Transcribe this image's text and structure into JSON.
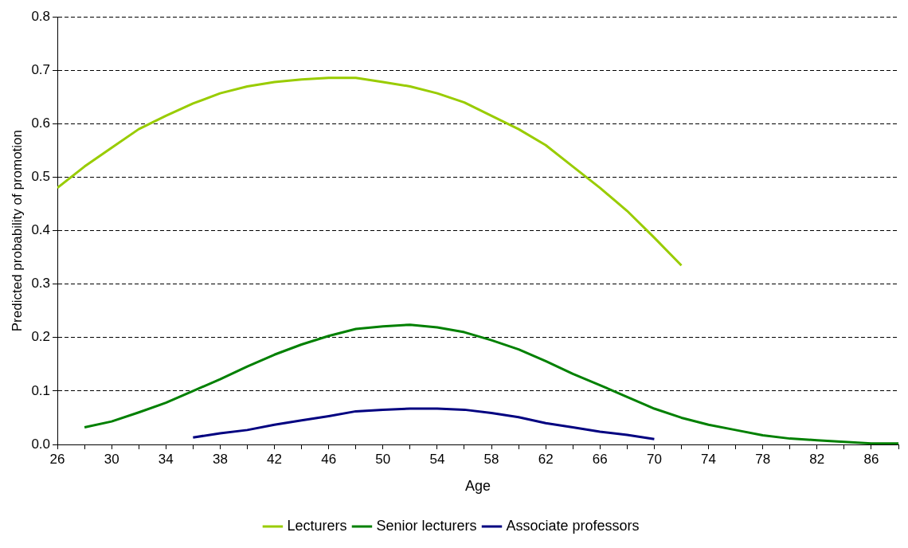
{
  "chart_data": {
    "type": "line",
    "xlabel": "Age",
    "ylabel": "Predicted probability of promotion",
    "xlim": [
      26,
      88
    ],
    "xticks": [
      26,
      {
        "value": 28,
        "label": null
      },
      30,
      {
        "value": 32,
        "label": null
      },
      34,
      {
        "value": 36,
        "label": null
      },
      38,
      {
        "value": 40,
        "label": null
      },
      42,
      {
        "value": 44,
        "label": null
      },
      46,
      {
        "value": 48,
        "label": null
      },
      50,
      {
        "value": 52,
        "label": null
      },
      54,
      {
        "value": 56,
        "label": null
      },
      58,
      {
        "value": 60,
        "label": null
      },
      62,
      {
        "value": 64,
        "label": null
      },
      66,
      {
        "value": 68,
        "label": null
      },
      70,
      {
        "value": 72,
        "label": null
      },
      74,
      {
        "value": 76,
        "label": null
      },
      78,
      {
        "value": 80,
        "label": null
      },
      82,
      {
        "value": 84,
        "label": null
      },
      86,
      {
        "value": 88,
        "label": null
      }
    ],
    "ylim": [
      0,
      0.8
    ],
    "yticks": [
      {
        "value": 0,
        "label": "0.0"
      },
      0.1,
      0.2,
      0.3,
      0.4,
      0.5,
      0.6,
      0.7,
      0.8
    ],
    "grid": "y",
    "legend": "bottom",
    "marker": "none",
    "line_style": "solid",
    "series": [
      {
        "name": "Lecturers",
        "color": "#99cc00",
        "x": [
          26,
          28,
          30,
          32,
          34,
          36,
          38,
          40,
          42,
          44,
          46,
          48,
          50,
          52,
          54,
          56,
          58,
          60,
          62,
          64,
          66,
          68,
          70,
          72
        ],
        "values": [
          0.48,
          0.52,
          0.555,
          0.59,
          0.615,
          0.638,
          0.657,
          0.67,
          0.678,
          0.683,
          0.686,
          0.686,
          0.678,
          0.67,
          0.657,
          0.64,
          0.615,
          0.59,
          0.56,
          0.52,
          0.48,
          0.437,
          0.387,
          0.335
        ]
      },
      {
        "name": "Senior lecturers",
        "color": "#008000",
        "x": [
          28,
          30,
          32,
          34,
          36,
          38,
          40,
          42,
          44,
          46,
          48,
          50,
          52,
          54,
          56,
          58,
          60,
          62,
          64,
          66,
          68,
          70,
          72,
          74,
          76,
          78,
          80,
          82,
          84,
          86,
          88
        ],
        "values": [
          0.032,
          0.043,
          0.06,
          0.078,
          0.1,
          0.122,
          0.146,
          0.168,
          0.187,
          0.203,
          0.216,
          0.221,
          0.224,
          0.219,
          0.21,
          0.195,
          0.178,
          0.156,
          0.132,
          0.111,
          0.089,
          0.067,
          0.05,
          0.037,
          0.027,
          0.017,
          0.011,
          0.008,
          0.005,
          0.002,
          0.002
        ]
      },
      {
        "name": "Associate professors",
        "color": "#000080",
        "x": [
          36,
          38,
          40,
          42,
          44,
          46,
          48,
          50,
          52,
          54,
          56,
          58,
          60,
          62,
          64,
          66,
          68,
          70
        ],
        "values": [
          0.013,
          0.021,
          0.027,
          0.037,
          0.045,
          0.053,
          0.062,
          0.065,
          0.067,
          0.067,
          0.065,
          0.059,
          0.051,
          0.04,
          0.032,
          0.024,
          0.018,
          0.01
        ]
      }
    ]
  }
}
